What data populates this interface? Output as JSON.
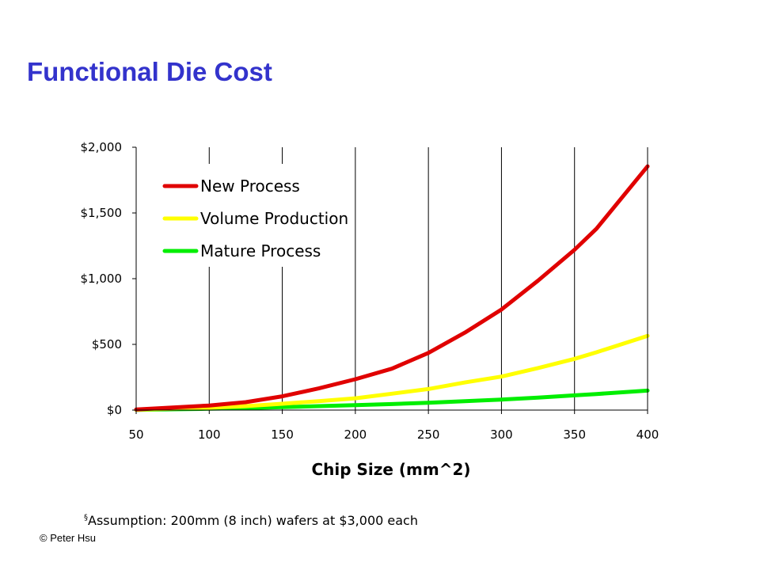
{
  "slide": {
    "title": "Functional Die Cost",
    "footnote_bullet": "§",
    "footnote": "Assumption: 200mm (8 inch) wafers at $3,000 each",
    "copyright": "© Peter Hsu"
  },
  "chart_data": {
    "type": "line",
    "title": "",
    "xlabel": "Chip Size (mm^2)",
    "ylabel": "",
    "xlim": [
      50,
      400
    ],
    "ylim": [
      0,
      2000
    ],
    "x_ticks": [
      50,
      100,
      150,
      200,
      250,
      300,
      350,
      400
    ],
    "y_ticks": [
      0,
      500,
      1000,
      1500,
      2000
    ],
    "y_tick_labels": [
      "$0",
      "$500",
      "$1,000",
      "$1,500",
      "$2,000"
    ],
    "grid": "vertical",
    "legend": "top-left",
    "x": [
      50,
      75,
      100,
      125,
      150,
      175,
      200,
      225,
      250,
      275,
      300,
      325,
      350,
      365,
      400
    ],
    "series": [
      {
        "name": "New Process",
        "color": "#e00000",
        "values": [
          5,
          20,
          35,
          60,
          105,
          165,
          235,
          315,
          435,
          590,
          765,
          985,
          1220,
          1380,
          1855
        ]
      },
      {
        "name": "Volume Production",
        "color": "#ffff00",
        "values": [
          3,
          10,
          18,
          30,
          48,
          68,
          90,
          125,
          160,
          210,
          255,
          320,
          390,
          440,
          565
        ]
      },
      {
        "name": "Mature Process",
        "color": "#00ee00",
        "values": [
          2,
          6,
          10,
          15,
          22,
          30,
          38,
          46,
          56,
          68,
          80,
          95,
          112,
          122,
          148
        ]
      }
    ]
  }
}
